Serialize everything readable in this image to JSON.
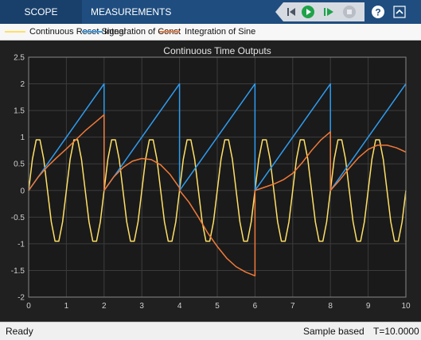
{
  "toolstrip": {
    "tabs": [
      {
        "label": "SCOPE",
        "active": true
      },
      {
        "label": "MEASUREMENTS",
        "active": false
      }
    ],
    "buttons": [
      "step-back",
      "run",
      "step-forward",
      "stop",
      "help",
      "expand"
    ],
    "colors": {
      "bar": "#1f4d7f",
      "active_tab": "#19406b",
      "run_green": "#1fa34a"
    }
  },
  "legend": {
    "entries": [
      {
        "label": "Continuous Reset Signal",
        "color": "#ffe066"
      },
      {
        "label": "Integration of Const",
        "color": "#2e9cf0"
      },
      {
        "label": "Integration of Sine",
        "color": "#f07a3a"
      }
    ]
  },
  "status": {
    "ready": "Ready",
    "mode": "Sample based",
    "time": "T=10.0000"
  },
  "chart_data": {
    "type": "line",
    "title": "Continuous Time Outputs",
    "xlabel": "",
    "ylabel": "",
    "xlim": [
      0,
      10
    ],
    "ylim": [
      -2,
      2.5
    ],
    "xticks": [
      0,
      1,
      2,
      3,
      4,
      5,
      6,
      7,
      8,
      9,
      10
    ],
    "yticks": [
      -2,
      -1.5,
      -1,
      -0.5,
      0,
      0.5,
      1,
      1.5,
      2,
      2.5
    ],
    "grid": true,
    "background": "#1a1a1a",
    "series": [
      {
        "name": "Continuous Reset Signal",
        "color": "#ffe066",
        "x": [
          0,
          0.1,
          0.2,
          0.3,
          0.4,
          0.5,
          0.6,
          0.7,
          0.8,
          0.9,
          1.0,
          1.1,
          1.2,
          1.3,
          1.4,
          1.5,
          1.6,
          1.7,
          1.8,
          1.9,
          2.0,
          2.1,
          2.2,
          2.3,
          2.4,
          2.5,
          2.6,
          2.7,
          2.8,
          2.9,
          3.0,
          3.1,
          3.2,
          3.3,
          3.4,
          3.5,
          3.6,
          3.7,
          3.8,
          3.9,
          4.0,
          4.1,
          4.2,
          4.3,
          4.4,
          4.5,
          4.6,
          4.7,
          4.8,
          4.9,
          5.0,
          5.1,
          5.2,
          5.3,
          5.4,
          5.5,
          5.6,
          5.7,
          5.8,
          5.9,
          6.0,
          6.1,
          6.2,
          6.3,
          6.4,
          6.5,
          6.6,
          6.7,
          6.8,
          6.9,
          7.0,
          7.1,
          7.2,
          7.3,
          7.4,
          7.5,
          7.6,
          7.7,
          7.8,
          7.9,
          8.0,
          8.1,
          8.2,
          8.3,
          8.4,
          8.5,
          8.6,
          8.7,
          8.8,
          8.9,
          9.0,
          9.1,
          9.2,
          9.3,
          9.4,
          9.5,
          9.6,
          9.7,
          9.8,
          9.9,
          10.0
        ],
        "y": [
          0,
          0.588,
          0.951,
          0.951,
          0.588,
          0,
          -0.588,
          -0.951,
          -0.951,
          -0.588,
          0,
          0.588,
          0.951,
          0.951,
          0.588,
          0,
          -0.588,
          -0.951,
          -0.951,
          -0.588,
          0,
          0.588,
          0.951,
          0.951,
          0.588,
          0,
          -0.588,
          -0.951,
          -0.951,
          -0.588,
          0,
          0.588,
          0.951,
          0.951,
          0.588,
          0,
          -0.588,
          -0.951,
          -0.951,
          -0.588,
          0,
          0.588,
          0.951,
          0.951,
          0.588,
          0,
          -0.588,
          -0.951,
          -0.951,
          -0.588,
          0,
          0.588,
          0.951,
          0.951,
          0.588,
          0,
          -0.588,
          -0.951,
          -0.951,
          -0.588,
          0,
          0.588,
          0.951,
          0.951,
          0.588,
          0,
          -0.588,
          -0.951,
          -0.951,
          -0.588,
          0,
          0.588,
          0.951,
          0.951,
          0.588,
          0,
          -0.588,
          -0.951,
          -0.951,
          -0.588,
          0,
          0.588,
          0.951,
          0.951,
          0.588,
          0,
          -0.588,
          -0.951,
          -0.951,
          -0.588,
          0,
          0.588,
          0.951,
          0.951,
          0.588,
          0,
          -0.588,
          -0.951,
          -0.951,
          -0.588,
          0
        ]
      },
      {
        "name": "Integration of Const",
        "color": "#2e9cf0",
        "x": [
          0,
          2,
          2,
          4,
          4,
          6,
          6,
          8,
          8,
          10
        ],
        "y": [
          0,
          2,
          0,
          2,
          0,
          2,
          0,
          2,
          0,
          2
        ]
      },
      {
        "name": "Integration of Sine",
        "color": "#f07a3a",
        "x": [
          0,
          0.25,
          0.5,
          0.75,
          1.0,
          1.25,
          1.5,
          1.75,
          2.0,
          2.0,
          2.25,
          2.5,
          2.75,
          3.0,
          3.25,
          3.5,
          3.75,
          4.0,
          4.0,
          4.25,
          4.5,
          4.75,
          5.0,
          5.25,
          5.5,
          5.75,
          6.0,
          6.0,
          6.25,
          6.5,
          6.75,
          7.0,
          7.25,
          7.5,
          7.75,
          8.0,
          8.0,
          8.25,
          8.5,
          8.75,
          9.0,
          9.25,
          9.5,
          9.75,
          10.0
        ],
        "y": [
          0,
          0.25,
          0.45,
          0.62,
          0.78,
          0.95,
          1.12,
          1.27,
          1.42,
          0,
          0.25,
          0.43,
          0.55,
          0.6,
          0.58,
          0.48,
          0.3,
          0.05,
          0,
          -0.22,
          -0.5,
          -0.8,
          -1.05,
          -1.27,
          -1.43,
          -1.53,
          -1.6,
          0,
          0.06,
          0.12,
          0.2,
          0.32,
          0.52,
          0.75,
          0.95,
          1.1,
          0,
          0.2,
          0.42,
          0.62,
          0.77,
          0.85,
          0.85,
          0.8,
          0.72
        ]
      }
    ]
  }
}
